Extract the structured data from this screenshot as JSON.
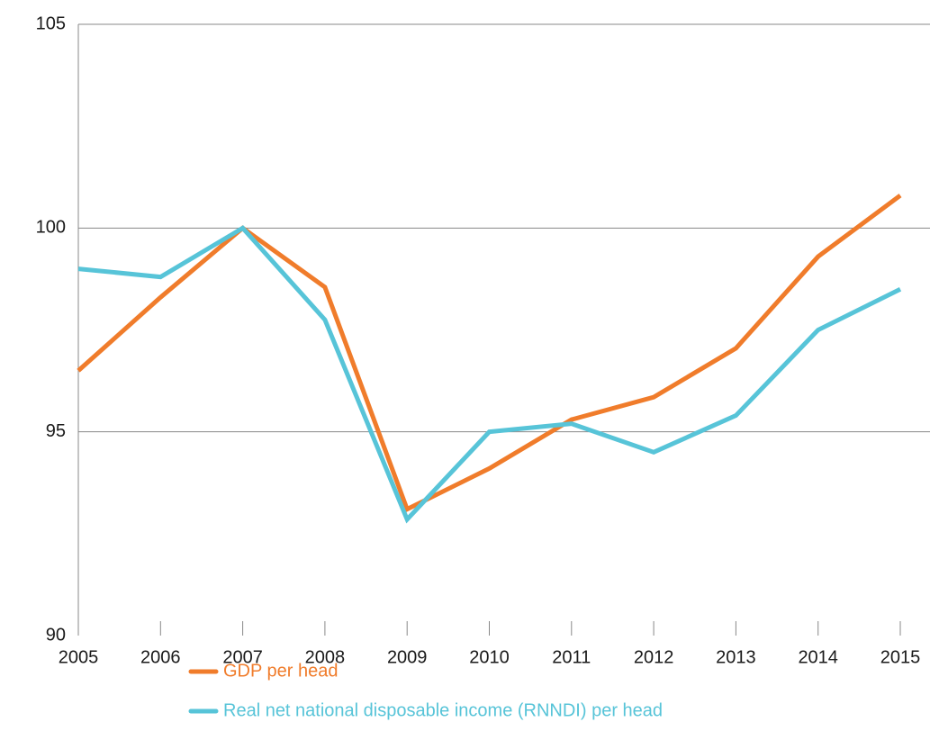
{
  "chart_data": {
    "type": "line",
    "categories": [
      "2005",
      "2006",
      "2007",
      "2008",
      "2009",
      "2010",
      "2011",
      "2012",
      "2013",
      "2014",
      "2015"
    ],
    "series": [
      {
        "name": "GDP per head",
        "color": "#f07c2b",
        "values": [
          96.5,
          98.3,
          100.0,
          98.55,
          93.1,
          94.1,
          95.3,
          95.85,
          97.05,
          99.3,
          100.8
        ]
      },
      {
        "name": "Real net national disposable income (RNNDI) per head",
        "color": "#57c4d8",
        "values": [
          99.0,
          98.8,
          100.0,
          97.75,
          92.85,
          95.0,
          95.2,
          94.5,
          95.4,
          97.5,
          98.5
        ]
      }
    ],
    "ylim": [
      90,
      105
    ],
    "yticks": [
      90,
      95,
      100,
      105
    ],
    "grid": true
  }
}
